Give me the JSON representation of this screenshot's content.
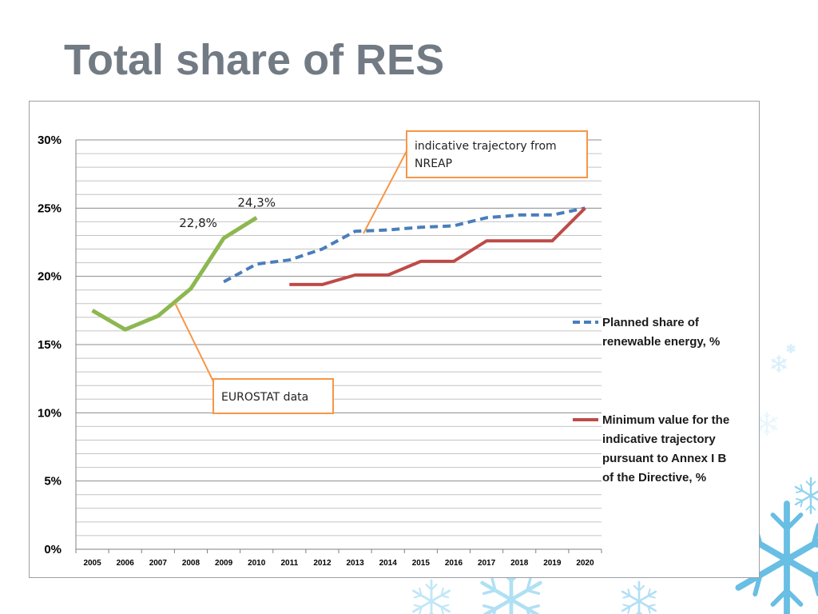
{
  "slide": {
    "title": "Total share of RES"
  },
  "chart_data": {
    "type": "line",
    "x": [
      "2005",
      "2006",
      "2007",
      "2008",
      "2009",
      "2010",
      "2011",
      "2012",
      "2013",
      "2014",
      "2015",
      "2016",
      "2017",
      "2018",
      "2019",
      "2020"
    ],
    "yticks": [
      "0%",
      "5%",
      "10%",
      "15%",
      "20%",
      "25%",
      "30%"
    ],
    "ylim": [
      0,
      30
    ],
    "grid": true,
    "legend_position": "right",
    "series": [
      {
        "name": "",
        "color": "#8db750",
        "style": "solid",
        "values": [
          17.5,
          16.1,
          17.1,
          19.1,
          22.8,
          24.3,
          null,
          null,
          null,
          null,
          null,
          null,
          null,
          null,
          null,
          null
        ]
      },
      {
        "name": "Planned share of renewable energy, %",
        "color": "#4a7ebb",
        "style": "dashed",
        "values": [
          null,
          null,
          null,
          null,
          19.6,
          20.9,
          21.2,
          22.0,
          23.3,
          23.4,
          23.6,
          23.7,
          24.3,
          24.5,
          24.5,
          25.0
        ]
      },
      {
        "name": "Minimum value for the indicative trajectory pursuant to Annex I B of the Directive, %",
        "color": "#be4b48",
        "style": "solid",
        "values": [
          null,
          null,
          null,
          null,
          null,
          null,
          19.4,
          19.4,
          20.1,
          20.1,
          21.1,
          21.1,
          22.6,
          22.6,
          22.6,
          25.0
        ]
      }
    ],
    "legend_lines": [
      [
        "Planned share of",
        "renewable energy, %"
      ],
      [
        "Minimum value for the",
        "indicative trajectory",
        "pursuant to Annex I B",
        "of the Directive, %"
      ]
    ],
    "data_labels": [
      {
        "text": "22,8%",
        "series": 0,
        "x": "2009"
      },
      {
        "text": "24,3%",
        "series": 0,
        "x": "2010"
      }
    ],
    "annotations": [
      {
        "lines": [
          "indicative trajectory from",
          "NREAP"
        ],
        "border": "#f79646"
      },
      {
        "lines": [
          "EUROSTAT data"
        ],
        "border": "#f79646"
      }
    ]
  }
}
